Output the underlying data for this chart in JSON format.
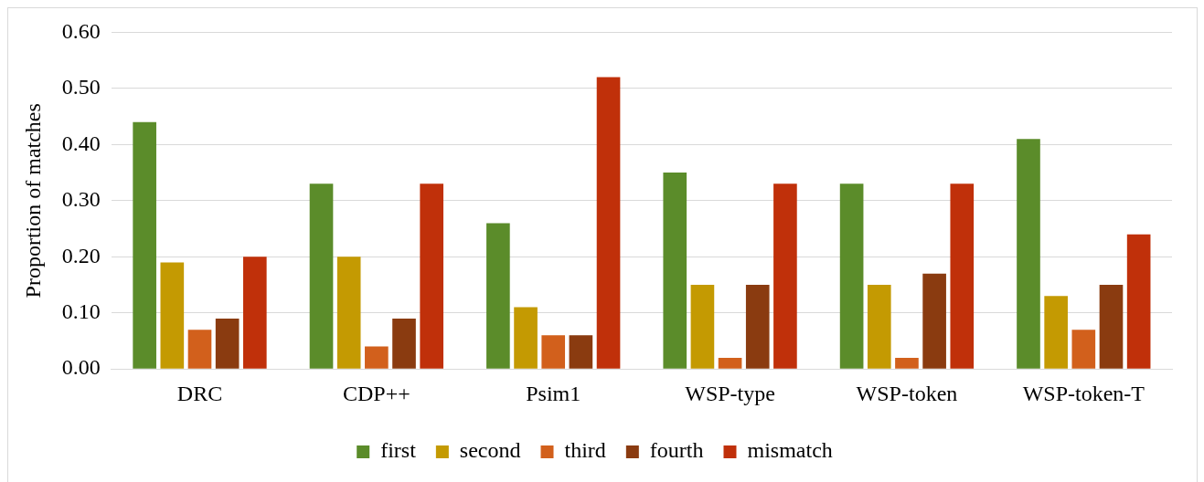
{
  "chart_data": {
    "type": "bar",
    "ylabel": "Proportion of matches",
    "categories": [
      "DRC",
      "CDP++",
      "Psim1",
      "WSP-type",
      "WSP-token",
      "WSP-token-T"
    ],
    "series": [
      {
        "name": "first",
        "color": "#5b8c2a",
        "values": [
          0.44,
          0.33,
          0.26,
          0.35,
          0.33,
          0.41
        ]
      },
      {
        "name": "second",
        "color": "#c49a02",
        "values": [
          0.19,
          0.2,
          0.11,
          0.15,
          0.15,
          0.13
        ]
      },
      {
        "name": "third",
        "color": "#d2601c",
        "values": [
          0.07,
          0.04,
          0.06,
          0.02,
          0.02,
          0.07
        ]
      },
      {
        "name": "fourth",
        "color": "#8a3b10",
        "values": [
          0.09,
          0.09,
          0.06,
          0.15,
          0.17,
          0.15
        ]
      },
      {
        "name": "mismatch",
        "color": "#c0300a",
        "values": [
          0.2,
          0.33,
          0.52,
          0.33,
          0.33,
          0.24
        ]
      }
    ],
    "ylim": [
      0,
      0.6
    ],
    "yticks": [
      {
        "value": 0,
        "label": "0.00"
      },
      {
        "value": 0.1,
        "label": "0.10"
      },
      {
        "value": 0.2,
        "label": "0.20"
      },
      {
        "value": 0.3,
        "label": "0.30"
      },
      {
        "value": 0.4,
        "label": "0.40"
      },
      {
        "value": 0.5,
        "label": "0.50"
      },
      {
        "value": 0.6,
        "label": "0.60"
      }
    ],
    "grid": "y",
    "legend": "bottom"
  }
}
